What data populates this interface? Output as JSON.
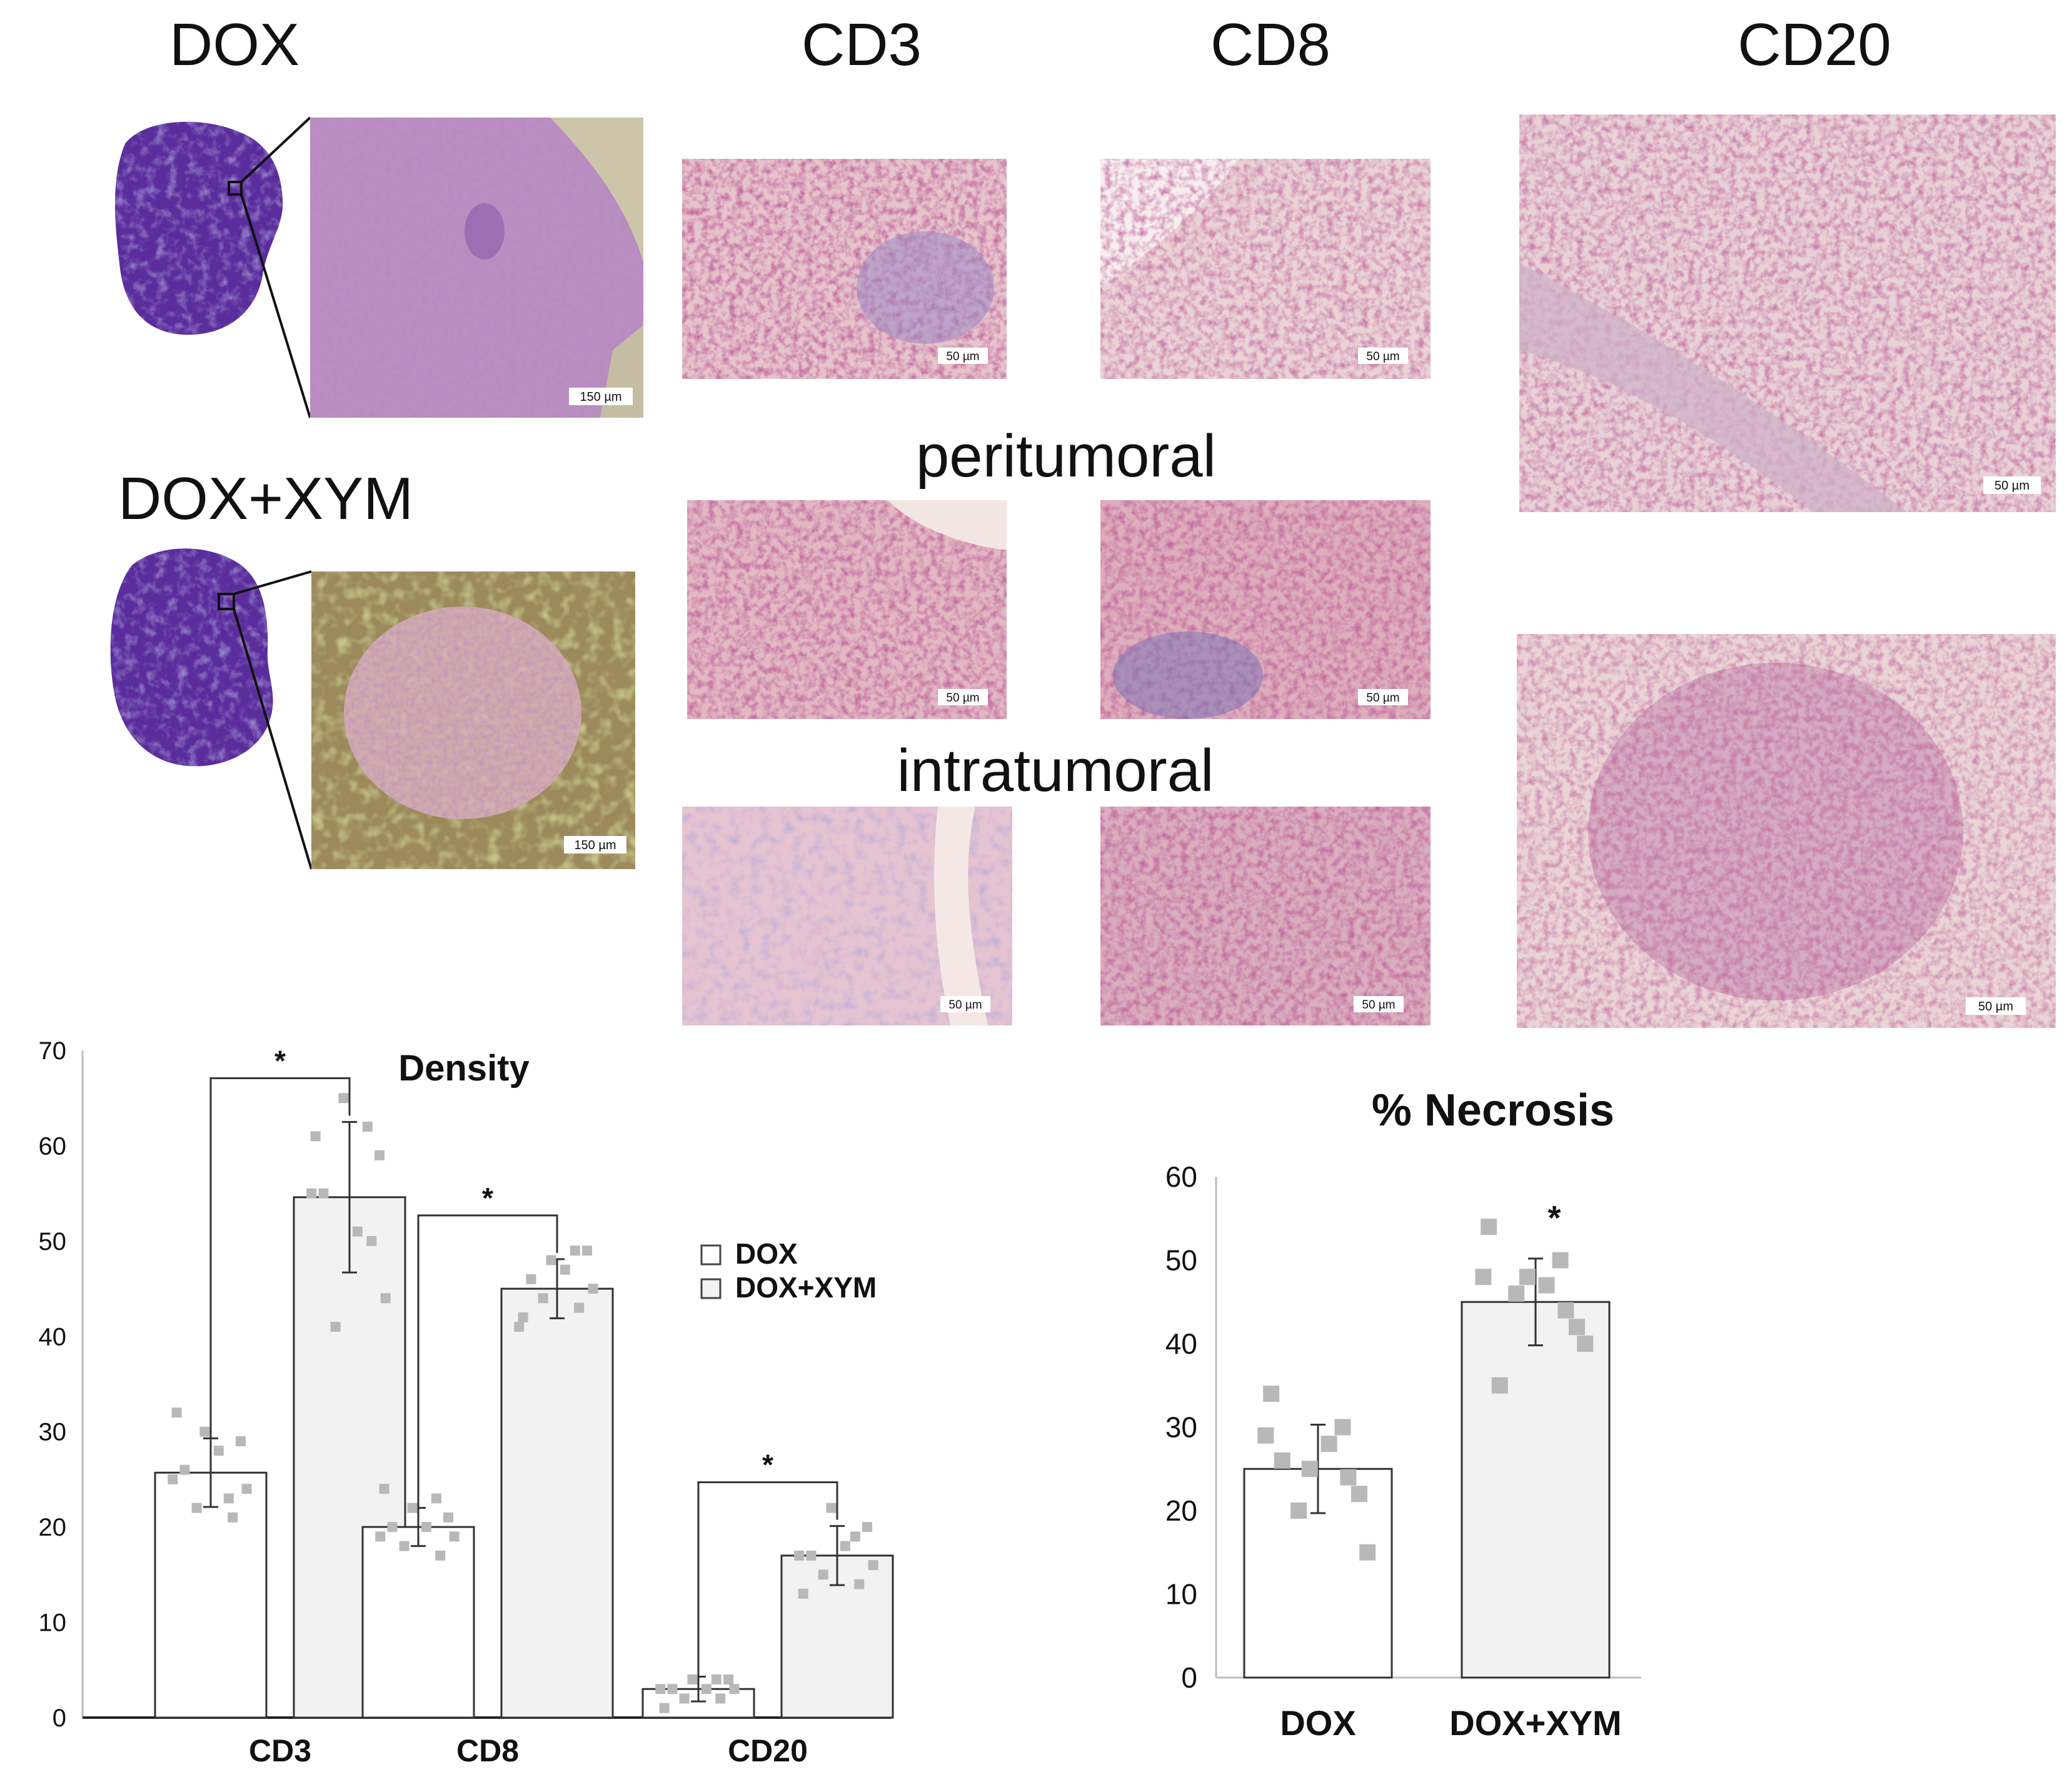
{
  "panel_labels": {
    "dox": "DOX",
    "dox_xym": "DOX+XYM",
    "cd3": "CD3",
    "cd8": "CD8",
    "cd20": "CD20",
    "peritumoral": "peritumoral",
    "intratumoral": "intratumoral"
  },
  "scale_bars": {
    "um150": "150 µm",
    "um50": "50 µm"
  },
  "colors": {
    "hematoxylin": "#5a2f9a",
    "stain_pink": "#e9c9cc",
    "stain_red": "#8a1f3f",
    "bar_dox": "#ffffff",
    "bar_dox_xym": "#f2f2f2",
    "points": "#b8b8b8"
  },
  "chart_data": [
    {
      "type": "bar",
      "title": "Density",
      "categories": [
        "CD3",
        "CD8",
        "CD20"
      ],
      "ylim": [
        0,
        70
      ],
      "yticks": [
        0,
        10,
        20,
        30,
        40,
        50,
        60,
        70
      ],
      "grid": false,
      "legend_position": "right",
      "significance": "*",
      "series": [
        {
          "name": "DOX",
          "values": [
            25.7,
            20.0,
            3.0
          ],
          "errors": [
            3.6,
            2.0,
            1.3
          ],
          "points": [
            [
              32,
              21,
              22,
              24,
              26,
              28,
              29,
              30,
              23,
              25
            ],
            [
              24,
              17,
              18,
              19,
              20,
              20,
              21,
              22,
              23,
              19
            ],
            [
              1,
              2,
              2,
              3,
              3,
              3,
              4,
              4,
              4,
              3
            ]
          ]
        },
        {
          "name": "DOX+XYM",
          "values": [
            54.6,
            45.0,
            17.0
          ],
          "errors": [
            7.9,
            3.1,
            3.1
          ],
          "points": [
            [
              61,
              50,
              41,
              44,
              55,
              51,
              59,
              65,
              62,
              55
            ],
            [
              42,
              43,
              44,
              45,
              46,
              47,
              49,
              48,
              49,
              41
            ],
            [
              13,
              14,
              15,
              16,
              17,
              18,
              20,
              22,
              19,
              17
            ]
          ]
        }
      ]
    },
    {
      "type": "bar",
      "title": "% Necrosis",
      "categories": [
        "DOX",
        "DOX+XYM"
      ],
      "ylim": [
        0,
        60
      ],
      "yticks": [
        0,
        10,
        20,
        30,
        40,
        50,
        60
      ],
      "grid": false,
      "significance": "*",
      "values": [
        25.0,
        45.0
      ],
      "errors": [
        5.3,
        5.2
      ],
      "points": [
        [
          34,
          24,
          20,
          15,
          26,
          28,
          22,
          25,
          30,
          29
        ],
        [
          54,
          44,
          46,
          40,
          35,
          47,
          42,
          48,
          50,
          48
        ]
      ]
    }
  ]
}
